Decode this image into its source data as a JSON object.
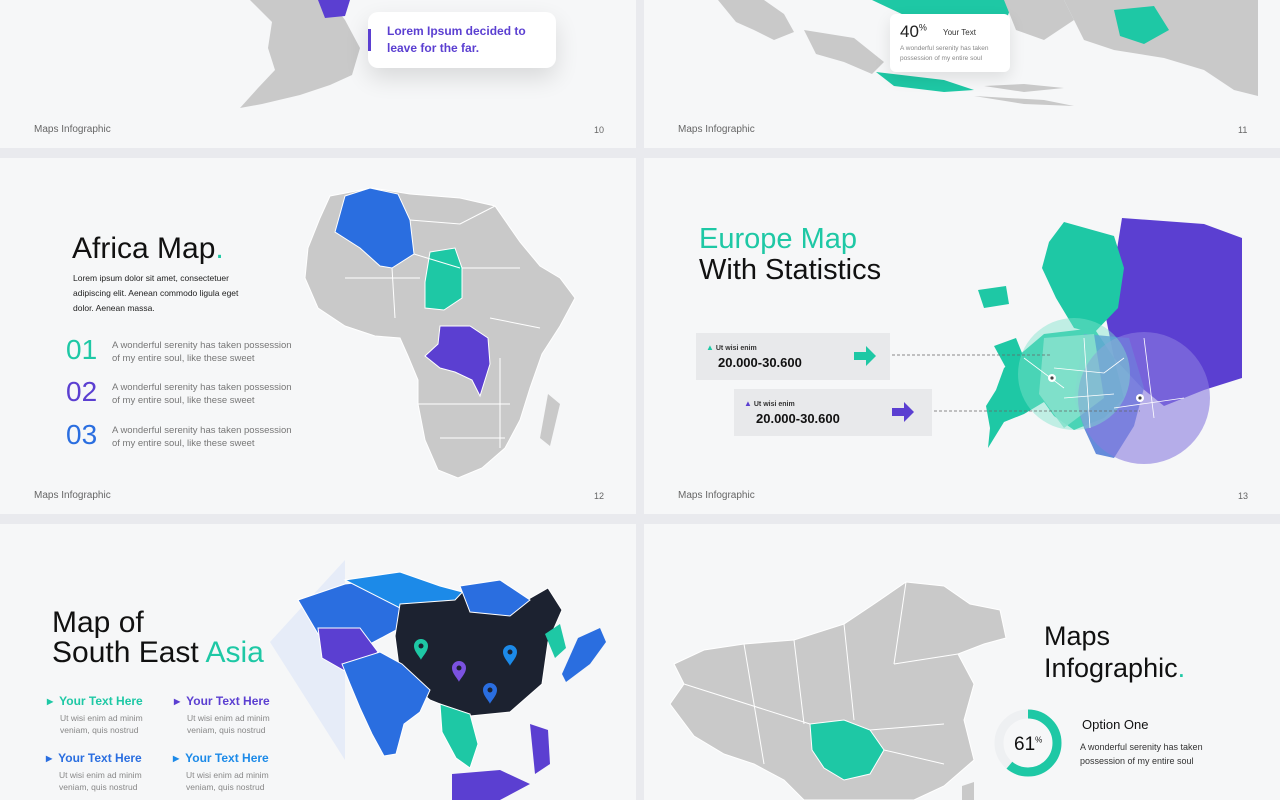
{
  "colors": {
    "teal": "#1ec8a5",
    "purple": "#5b3fd1",
    "blue": "#2a6ee0",
    "dark": "#1c2230",
    "gray": "#c9c9c9"
  },
  "slide10": {
    "callout": "Lorem Ipsum decided to leave for the far.",
    "footer": "Maps Infographic",
    "number": "10"
  },
  "slide11": {
    "percent": "40",
    "percent_sign": "%",
    "title": "Your Text",
    "desc": "A wonderful serenity has taken possession of my entire soul",
    "footer": "Maps Infographic",
    "number": "11"
  },
  "slide12": {
    "title": "Africa Map",
    "title_dot": ".",
    "desc": "Lorem ipsum dolor sit amet, consectetuer adipiscing elit. Aenean commodo ligula eget dolor. Aenean massa.",
    "items": [
      {
        "num": "01",
        "text": "A wonderful serenity has taken possession of my entire soul, like these sweet"
      },
      {
        "num": "02",
        "text": "A wonderful serenity has taken possession of my entire soul, like these sweet"
      },
      {
        "num": "03",
        "text": "A wonderful serenity has taken possession of my entire soul, like these sweet"
      }
    ],
    "footer": "Maps Infographic",
    "number": "12"
  },
  "slide13": {
    "title_line1": "Europe Map",
    "title_line2": "With Statistics",
    "stats": [
      {
        "label": "Ut wisi enim",
        "value": "20.000-30.600",
        "icon": "arrow-up-icon"
      },
      {
        "label": "Ut wisi enim",
        "value": "20.000-30.600",
        "icon": "arrow-up-icon"
      }
    ],
    "footer": "Maps Infographic",
    "number": "13"
  },
  "slide14": {
    "title_line1": "Map of",
    "title_line2_a": "South East ",
    "title_line2_b": "Asia",
    "items": [
      {
        "head": "Your Text Here",
        "body": "Ut wisi enim ad minim veniam, quis nostrud"
      },
      {
        "head": "Your Text Here",
        "body": "Ut wisi enim ad minim veniam, quis nostrud"
      },
      {
        "head": "Your Text Here",
        "body": "Ut wisi enim ad minim veniam, quis nostrud"
      },
      {
        "head": "Your Text Here",
        "body": "Ut wisi enim ad minim veniam, quis nostrud"
      }
    ]
  },
  "slide15": {
    "title_line1": "Maps",
    "title_line2": "Infographic",
    "title_dot": ".",
    "gauge_value": "61",
    "gauge_sign": "%",
    "gauge_fraction": 0.61,
    "option_title": "Option One",
    "option_desc": "A wonderful serenity has taken possession of my entire soul"
  }
}
